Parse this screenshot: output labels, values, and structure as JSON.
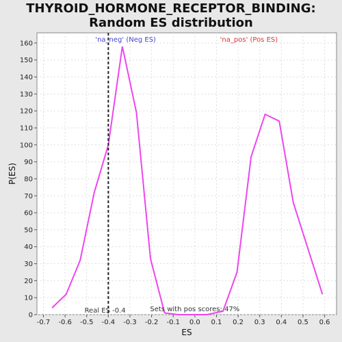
{
  "chart_data": {
    "type": "line",
    "title": "THYROID_HORMONE_RECEPTOR_BINDING: Random ES distribution",
    "xlabel": "ES",
    "ylabel": "P(ES)",
    "xlim": [
      -0.73,
      0.655
    ],
    "ylim": [
      0,
      166
    ],
    "xticks": [
      "-0.7",
      "-0.6",
      "-0.5",
      "-0.4",
      "-0.3",
      "-0.2",
      "-0.1",
      "0.0",
      "0.1",
      "0.2",
      "0.3",
      "0.4",
      "0.5",
      "0.6"
    ],
    "yticks": [
      0,
      10,
      20,
      30,
      40,
      50,
      60,
      70,
      80,
      90,
      100,
      110,
      120,
      130,
      140,
      150,
      160
    ],
    "grid": true,
    "series": [
      {
        "color": "#ee44ee",
        "x": [
          -0.66,
          -0.595,
          -0.53,
          -0.465,
          -0.4,
          -0.335,
          -0.27,
          -0.205,
          -0.14,
          -0.075,
          -0.01,
          0.055,
          0.13,
          0.195,
          0.26,
          0.325,
          0.39,
          0.455,
          0.525,
          0.59
        ],
        "y": [
          4,
          12,
          32,
          72,
          100,
          158,
          119,
          33,
          1,
          0,
          0,
          0,
          2,
          25,
          93,
          118,
          114,
          66,
          38,
          12
        ]
      }
    ],
    "real_es": {
      "x": -0.4,
      "label": "Real ES -0.4"
    },
    "annotations": {
      "neg": {
        "text": "'na_neg' (Neg ES)",
        "color": "#4444cc"
      },
      "pos": {
        "text": "'na_pos' (Pos ES)",
        "color": "#dd3333"
      },
      "pos_scores": "Sets with pos scores: 47%"
    }
  }
}
